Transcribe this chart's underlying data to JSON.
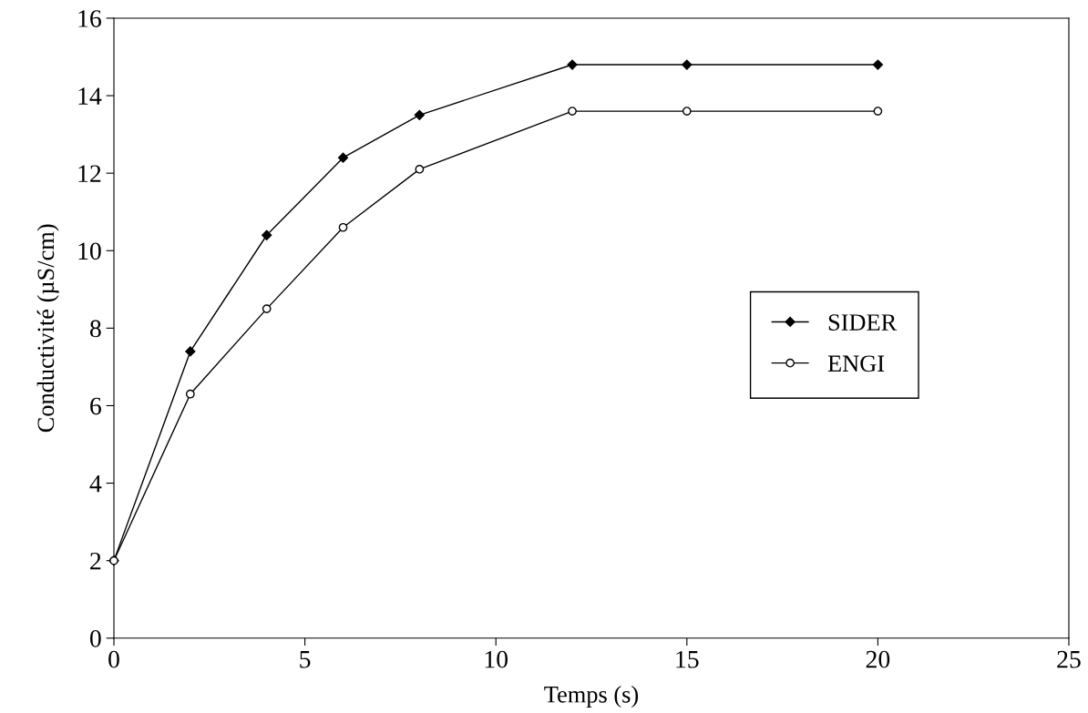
{
  "chart_data": {
    "type": "line",
    "xlabel": "Temps (s)",
    "ylabel": "Conductivité (µS/cm)",
    "xlim": [
      0,
      25
    ],
    "xticks": [
      0,
      5,
      10,
      15,
      20,
      25
    ],
    "ylim": [
      0,
      16
    ],
    "yticks": [
      0,
      2,
      4,
      6,
      8,
      10,
      12,
      14,
      16
    ],
    "grid": false,
    "legend": "right",
    "series": [
      {
        "name": "SIDER",
        "color": "#000000",
        "marker": "diamond",
        "x": [
          0,
          2,
          4,
          6,
          8,
          12,
          15,
          20
        ],
        "values": [
          2,
          7.4,
          10.4,
          12.4,
          13.5,
          14.8,
          14.8,
          14.8
        ]
      },
      {
        "name": "ENGI",
        "color": "#000000",
        "marker": "circle",
        "x": [
          0,
          2,
          4,
          6,
          8,
          12,
          15,
          20
        ],
        "values": [
          2,
          6.3,
          8.5,
          10.6,
          12.1,
          13.6,
          13.6,
          13.6
        ]
      }
    ]
  }
}
